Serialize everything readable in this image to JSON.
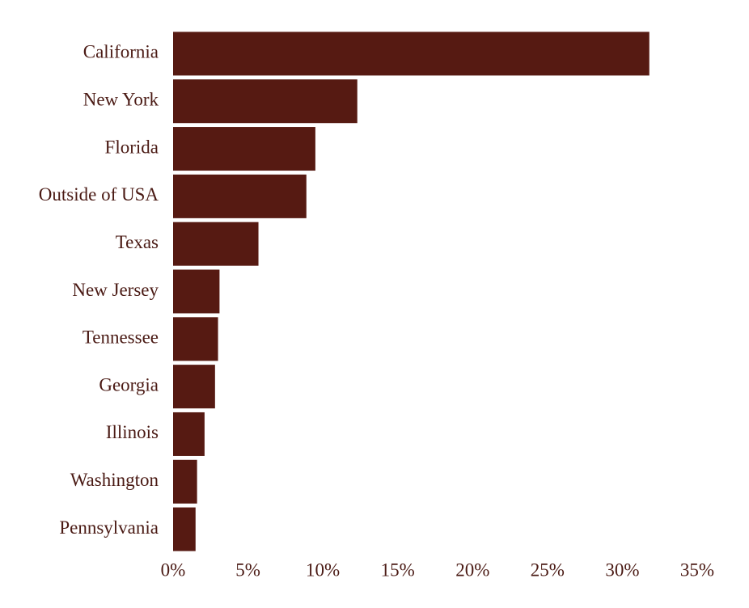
{
  "chart_data": {
    "type": "hbar",
    "categories": [
      "California",
      "New York",
      "Florida",
      "Outside of USA",
      "Texas",
      "New Jersey",
      "Tennessee",
      "Georgia",
      "Illinois",
      "Washington",
      "Pennsylvania"
    ],
    "values": [
      31.8,
      12.3,
      9.5,
      8.9,
      5.7,
      3.1,
      3.0,
      2.8,
      2.1,
      1.6,
      1.5
    ],
    "color": "#561a12",
    "xlim": [
      0,
      35
    ],
    "xticks": [
      {
        "value": 0,
        "label": "0%"
      },
      {
        "value": 5,
        "label": "5%"
      },
      {
        "value": 10,
        "label": "10%"
      },
      {
        "value": 15,
        "label": "15%"
      },
      {
        "value": 20,
        "label": "20%"
      },
      {
        "value": 25,
        "label": "25%"
      },
      {
        "value": 30,
        "label": "30%"
      },
      {
        "value": 35,
        "label": "35%"
      }
    ],
    "grid": false
  }
}
